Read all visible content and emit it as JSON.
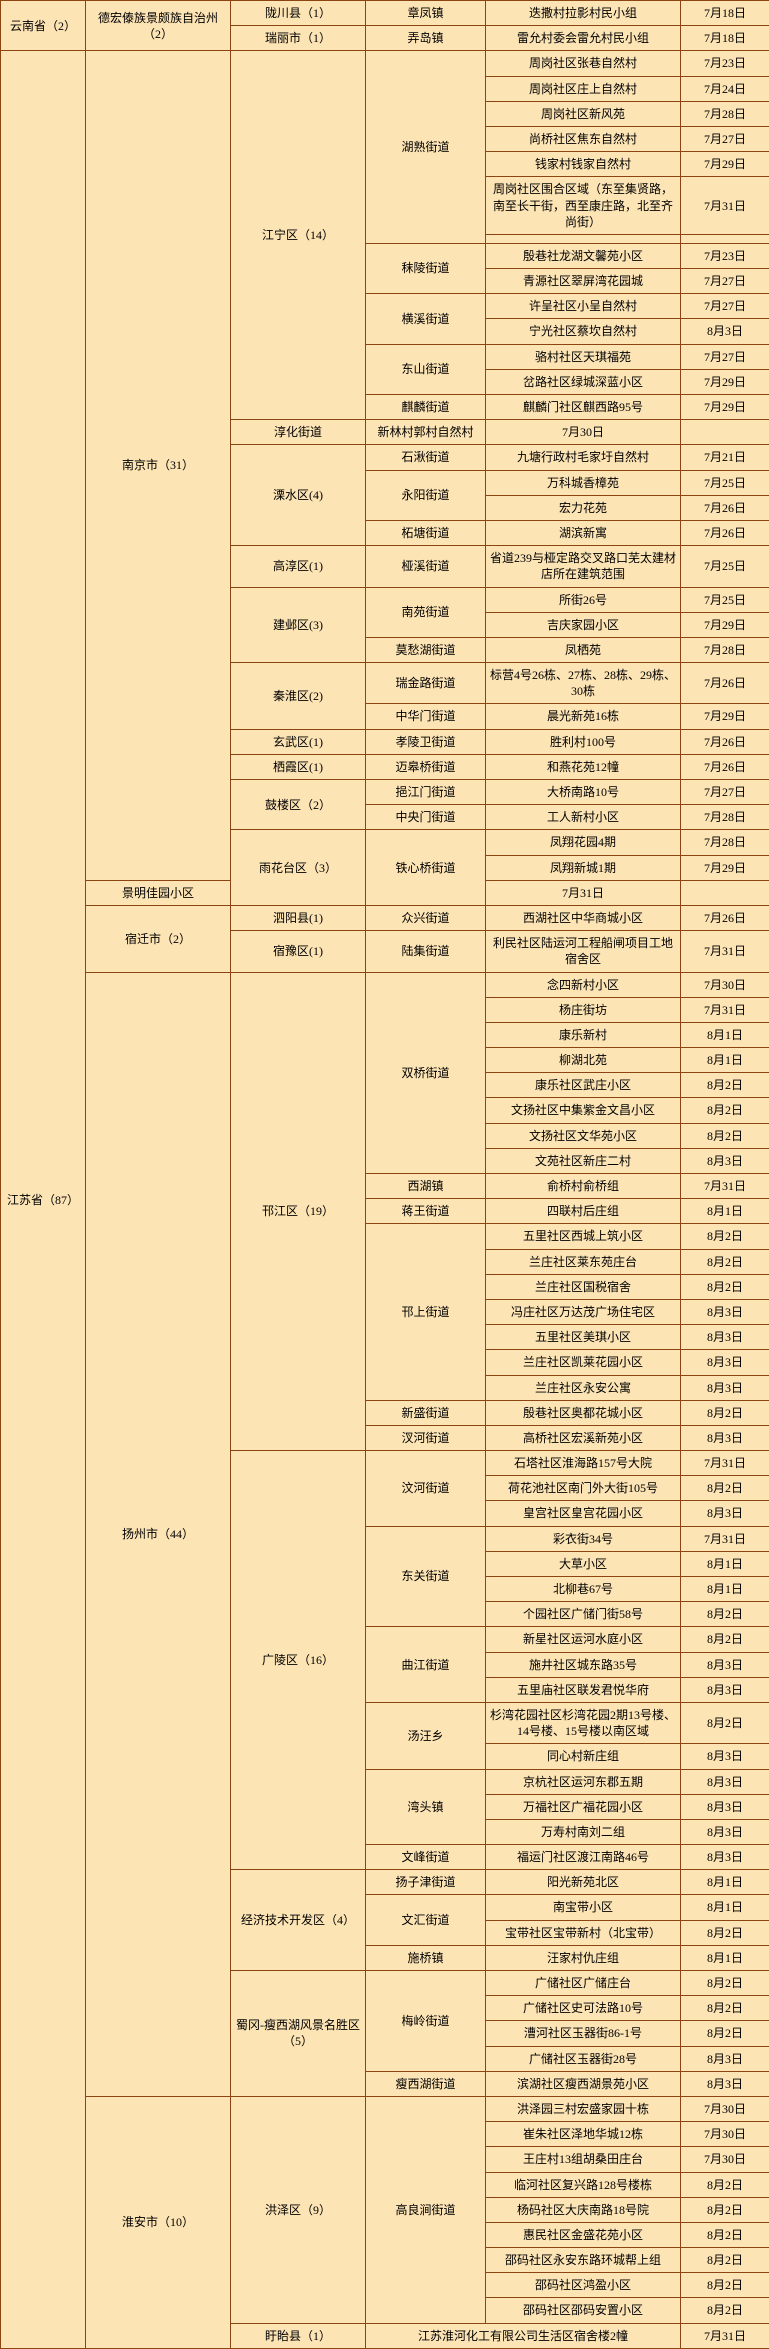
{
  "colwidths": [
    "85px",
    "145px",
    "135px",
    "120px",
    "195px",
    "89px"
  ],
  "rows": [
    [
      {
        "t": "云南省（2）",
        "rs": 2,
        "cls": "c0"
      },
      {
        "t": "德宏傣族景颇族自治州（2）",
        "rs": 2,
        "cls": "c1"
      },
      {
        "t": "陇川县（1）",
        "cls": "c2"
      },
      {
        "t": "章凤镇",
        "cls": "c3"
      },
      {
        "t": "迭撒村拉影村民小组",
        "cls": "c4"
      },
      {
        "t": "7月18日",
        "cls": "c5"
      }
    ],
    [
      {
        "t": "瑞丽市（1）",
        "cls": "c2"
      },
      {
        "t": "弄岛镇",
        "cls": "c3"
      },
      {
        "t": "雷允村委会雷允村民小组",
        "cls": "c4"
      },
      {
        "t": "7月18日",
        "cls": "c5"
      }
    ],
    [
      {
        "t": "江苏省（87）",
        "rs": 92,
        "cls": "c0"
      },
      {
        "t": "南京市（31）",
        "rs": 31,
        "cls": "c1"
      },
      {
        "t": "江宁区（14）",
        "rs": 14,
        "cls": "c2"
      },
      {
        "t": "湖熟街道",
        "rs": 7,
        "cls": "c3"
      },
      {
        "t": "周岗社区张巷自然村",
        "cls": "c4"
      },
      {
        "t": "7月23日",
        "cls": "c5"
      }
    ],
    [
      {
        "t": "周岗社区庄上自然村",
        "cls": "c4"
      },
      {
        "t": "7月24日",
        "cls": "c5"
      }
    ],
    [
      {
        "t": "周岗社区新风苑",
        "cls": "c4"
      },
      {
        "t": "7月28日",
        "cls": "c5"
      }
    ],
    [
      {
        "t": "尚桥社区焦东自然村",
        "cls": "c4"
      },
      {
        "t": "7月27日",
        "cls": "c5"
      }
    ],
    [
      {
        "t": "钱家村钱家自然村",
        "cls": "c4"
      },
      {
        "t": "7月29日",
        "cls": "c5"
      }
    ],
    [
      {
        "t": "周岗社区围合区域（东至集贤路，南至长干街，西至康庄路，北至齐尚街）",
        "cls": "c4"
      },
      {
        "t": "7月31日",
        "cls": "c5"
      }
    ],
    [
      {
        "t": "",
        "cls": "c4"
      },
      {
        "t": "",
        "cls": "c5"
      }
    ],
    [
      {
        "t": "秣陵街道",
        "rs": 2,
        "cls": "c3"
      },
      {
        "t": "殷巷社龙湖文馨苑小区",
        "cls": "c4"
      },
      {
        "t": "7月23日",
        "cls": "c5"
      }
    ],
    [
      {
        "t": "青源社区翠屏湾花园城",
        "cls": "c4"
      },
      {
        "t": "7月27日",
        "cls": "c5"
      }
    ],
    [
      {
        "t": "横溪街道",
        "rs": 2,
        "cls": "c3"
      },
      {
        "t": "许呈社区小呈自然村",
        "cls": "c4"
      },
      {
        "t": "7月27日",
        "cls": "c5"
      }
    ],
    [
      {
        "t": "宁光社区蔡坎自然村",
        "cls": "c4"
      },
      {
        "t": "8月3日",
        "cls": "c5"
      }
    ],
    [
      {
        "t": "东山街道",
        "rs": 2,
        "cls": "c3"
      },
      {
        "t": "骆村社区天琪福苑",
        "cls": "c4"
      },
      {
        "t": "7月27日",
        "cls": "c5"
      }
    ],
    [
      {
        "t": "岔路社区绿城深蓝小区",
        "cls": "c4"
      },
      {
        "t": "7月29日",
        "cls": "c5"
      }
    ],
    [
      {
        "t": "麒麟街道",
        "cls": "c3"
      },
      {
        "t": "麒麟门社区麒西路95号",
        "cls": "c4"
      },
      {
        "t": "7月29日",
        "cls": "c5"
      }
    ],
    [
      {
        "t": "淳化街道",
        "cls": "c3"
      },
      {
        "t": "新林村郭村自然村",
        "cls": "c4"
      },
      {
        "t": "7月30日",
        "cls": "c5"
      }
    ],
    [
      {
        "t": "溧水区(4)",
        "rs": 4,
        "cls": "c2"
      },
      {
        "t": "石湫街道",
        "cls": "c3"
      },
      {
        "t": "九塘行政村毛家圩自然村",
        "cls": "c4"
      },
      {
        "t": "7月21日",
        "cls": "c5"
      }
    ],
    [
      {
        "t": "永阳街道",
        "rs": 2,
        "cls": "c3"
      },
      {
        "t": "万科城香樟苑",
        "cls": "c4"
      },
      {
        "t": "7月25日",
        "cls": "c5"
      }
    ],
    [
      {
        "t": "宏力花苑",
        "cls": "c4"
      },
      {
        "t": "7月26日",
        "cls": "c5"
      }
    ],
    [
      {
        "t": "柘塘街道",
        "cls": "c3"
      },
      {
        "t": "湖滨新寓",
        "cls": "c4"
      },
      {
        "t": "7月26日",
        "cls": "c5"
      }
    ],
    [
      {
        "t": "高淳区(1)",
        "cls": "c2"
      },
      {
        "t": "桠溪街道",
        "cls": "c3"
      },
      {
        "t": "省道239与桠定路交叉路口芜太建材店所在建筑范围",
        "cls": "c4"
      },
      {
        "t": "7月25日",
        "cls": "c5"
      }
    ],
    [
      {
        "t": "建邺区(3)",
        "rs": 3,
        "cls": "c2"
      },
      {
        "t": "南苑街道",
        "rs": 2,
        "cls": "c3"
      },
      {
        "t": "所街26号",
        "cls": "c4"
      },
      {
        "t": "7月25日",
        "cls": "c5"
      }
    ],
    [
      {
        "t": "吉庆家园小区",
        "cls": "c4"
      },
      {
        "t": "7月29日",
        "cls": "c5"
      }
    ],
    [
      {
        "t": "莫愁湖街道",
        "cls": "c3"
      },
      {
        "t": "凤栖苑",
        "cls": "c4"
      },
      {
        "t": "7月28日",
        "cls": "c5"
      }
    ],
    [
      {
        "t": "秦淮区(2)",
        "rs": 2,
        "cls": "c2"
      },
      {
        "t": "瑞金路街道",
        "cls": "c3"
      },
      {
        "t": "标营4号26栋、27栋、28栋、29栋、30栋",
        "cls": "c4"
      },
      {
        "t": "7月26日",
        "cls": "c5"
      }
    ],
    [
      {
        "t": "中华门街道",
        "cls": "c3"
      },
      {
        "t": "晨光新苑16栋",
        "cls": "c4"
      },
      {
        "t": "7月29日",
        "cls": "c5"
      }
    ],
    [
      {
        "t": "玄武区(1)",
        "cls": "c2"
      },
      {
        "t": "孝陵卫街道",
        "cls": "c3"
      },
      {
        "t": "胜利村100号",
        "cls": "c4"
      },
      {
        "t": "7月26日",
        "cls": "c5"
      }
    ],
    [
      {
        "t": "栖霞区(1)",
        "cls": "c2"
      },
      {
        "t": "迈皋桥街道",
        "cls": "c3"
      },
      {
        "t": "和燕花苑12幢",
        "cls": "c4"
      },
      {
        "t": "7月26日",
        "cls": "c5"
      }
    ],
    [
      {
        "t": "鼓楼区（2）",
        "rs": 2,
        "cls": "c2"
      },
      {
        "t": "挹江门街道",
        "cls": "c3"
      },
      {
        "t": "大桥南路10号",
        "cls": "c4"
      },
      {
        "t": "7月27日",
        "cls": "c5"
      }
    ],
    [
      {
        "t": "中央门街道",
        "cls": "c3"
      },
      {
        "t": "工人新村小区",
        "cls": "c4"
      },
      {
        "t": "7月28日",
        "cls": "c5"
      }
    ],
    [
      {
        "t": "雨花台区（3）",
        "rs": 3,
        "cls": "c2"
      },
      {
        "t": "铁心桥街道",
        "rs": 3,
        "cls": "c3"
      },
      {
        "t": "凤翔花园4期",
        "cls": "c4"
      },
      {
        "t": "7月28日",
        "cls": "c5"
      }
    ],
    [
      {
        "t": "凤翔新城1期",
        "cls": "c4"
      },
      {
        "t": "7月29日",
        "cls": "c5"
      }
    ],
    [
      {
        "t": "景明佳园小区",
        "cls": "c4"
      },
      {
        "t": "7月31日",
        "cls": "c5"
      }
    ],
    [
      {
        "t": "宿迁市（2）",
        "rs": 2,
        "cls": "c1"
      },
      {
        "t": "泗阳县(1)",
        "cls": "c2"
      },
      {
        "t": "众兴街道",
        "cls": "c3"
      },
      {
        "t": "西湖社区中华商城小区",
        "cls": "c4"
      },
      {
        "t": "7月26日",
        "cls": "c5"
      }
    ],
    [
      {
        "t": "宿豫区(1)",
        "cls": "c2"
      },
      {
        "t": "陆集街道",
        "cls": "c3"
      },
      {
        "t": "利民社区陆运河工程船闸项目工地宿舍区",
        "cls": "c4"
      },
      {
        "t": "7月31日",
        "cls": "c5"
      }
    ],
    [
      {
        "t": "扬州市（44）",
        "rs": 44,
        "cls": "c1"
      },
      {
        "t": "邗江区（19）",
        "rs": 19,
        "cls": "c2"
      },
      {
        "t": "双桥街道",
        "rs": 8,
        "cls": "c3"
      },
      {
        "t": "念四新村小区",
        "cls": "c4"
      },
      {
        "t": "7月30日",
        "cls": "c5"
      }
    ],
    [
      {
        "t": "杨庄街坊",
        "cls": "c4"
      },
      {
        "t": "7月31日",
        "cls": "c5"
      }
    ],
    [
      {
        "t": "康乐新村",
        "cls": "c4"
      },
      {
        "t": "8月1日",
        "cls": "c5"
      }
    ],
    [
      {
        "t": "柳湖北苑",
        "cls": "c4"
      },
      {
        "t": "8月1日",
        "cls": "c5"
      }
    ],
    [
      {
        "t": "康乐社区武庄小区",
        "cls": "c4"
      },
      {
        "t": "8月2日",
        "cls": "c5"
      }
    ],
    [
      {
        "t": "文扬社区中集紫金文昌小区",
        "cls": "c4"
      },
      {
        "t": "8月2日",
        "cls": "c5"
      }
    ],
    [
      {
        "t": "文扬社区文华苑小区",
        "cls": "c4"
      },
      {
        "t": "8月2日",
        "cls": "c5"
      }
    ],
    [
      {
        "t": "文苑社区新庄二村",
        "cls": "c4"
      },
      {
        "t": "8月3日",
        "cls": "c5"
      }
    ],
    [
      {
        "t": "西湖镇",
        "cls": "c3"
      },
      {
        "t": "俞桥村俞桥组",
        "cls": "c4"
      },
      {
        "t": "7月31日",
        "cls": "c5"
      }
    ],
    [
      {
        "t": "蒋王街道",
        "cls": "c3"
      },
      {
        "t": "四联村后庄组",
        "cls": "c4"
      },
      {
        "t": "8月1日",
        "cls": "c5"
      }
    ],
    [
      {
        "t": "邗上街道",
        "rs": 7,
        "cls": "c3"
      },
      {
        "t": "五里社区西城上筑小区",
        "cls": "c4"
      },
      {
        "t": "8月2日",
        "cls": "c5"
      }
    ],
    [
      {
        "t": "兰庄社区莱东苑庄台",
        "cls": "c4"
      },
      {
        "t": "8月2日",
        "cls": "c5"
      }
    ],
    [
      {
        "t": "兰庄社区国税宿舍",
        "cls": "c4"
      },
      {
        "t": "8月2日",
        "cls": "c5"
      }
    ],
    [
      {
        "t": "冯庄社区万达茂广场住宅区",
        "cls": "c4"
      },
      {
        "t": "8月3日",
        "cls": "c5"
      }
    ],
    [
      {
        "t": "五里社区美琪小区",
        "cls": "c4"
      },
      {
        "t": "8月3日",
        "cls": "c5"
      }
    ],
    [
      {
        "t": "兰庄社区凯莱花园小区",
        "cls": "c4"
      },
      {
        "t": "8月3日",
        "cls": "c5"
      }
    ],
    [
      {
        "t": "兰庄社区永安公寓",
        "cls": "c4"
      },
      {
        "t": "8月3日",
        "cls": "c5"
      }
    ],
    [
      {
        "t": "新盛街道",
        "cls": "c3"
      },
      {
        "t": "殷巷社区奥都花城小区",
        "cls": "c4"
      },
      {
        "t": "8月2日",
        "cls": "c5"
      }
    ],
    [
      {
        "t": "汊河街道",
        "cls": "c3"
      },
      {
        "t": "高桥社区宏溪新苑小区",
        "cls": "c4"
      },
      {
        "t": "8月3日",
        "cls": "c5"
      }
    ],
    [
      {
        "t": "广陵区（16）",
        "rs": 16,
        "cls": "c2"
      },
      {
        "t": "汶河街道",
        "rs": 3,
        "cls": "c3"
      },
      {
        "t": "石塔社区淮海路157号大院",
        "cls": "c4"
      },
      {
        "t": "7月31日",
        "cls": "c5"
      }
    ],
    [
      {
        "t": "荷花池社区南门外大街105号",
        "cls": "c4"
      },
      {
        "t": "8月2日",
        "cls": "c5"
      }
    ],
    [
      {
        "t": "皇宫社区皇宫花园小区",
        "cls": "c4"
      },
      {
        "t": "8月3日",
        "cls": "c5"
      }
    ],
    [
      {
        "t": "东关街道",
        "rs": 4,
        "cls": "c3"
      },
      {
        "t": "彩衣街34号",
        "cls": "c4"
      },
      {
        "t": "7月31日",
        "cls": "c5"
      }
    ],
    [
      {
        "t": "大草小区",
        "cls": "c4"
      },
      {
        "t": "8月1日",
        "cls": "c5"
      }
    ],
    [
      {
        "t": "北柳巷67号",
        "cls": "c4"
      },
      {
        "t": "8月1日",
        "cls": "c5"
      }
    ],
    [
      {
        "t": "个园社区广储门街58号",
        "cls": "c4"
      },
      {
        "t": "8月2日",
        "cls": "c5"
      }
    ],
    [
      {
        "t": "曲江街道",
        "rs": 3,
        "cls": "c3"
      },
      {
        "t": "新星社区运河水庭小区",
        "cls": "c4"
      },
      {
        "t": "8月2日",
        "cls": "c5"
      }
    ],
    [
      {
        "t": "施井社区城东路35号",
        "cls": "c4"
      },
      {
        "t": "8月3日",
        "cls": "c5"
      }
    ],
    [
      {
        "t": "五里庙社区联发君悦华府",
        "cls": "c4"
      },
      {
        "t": "8月3日",
        "cls": "c5"
      }
    ],
    [
      {
        "t": "汤汪乡",
        "rs": 2,
        "cls": "c3"
      },
      {
        "t": "杉湾花园社区杉湾花园2期13号楼、14号楼、15号楼以南区域",
        "cls": "c4"
      },
      {
        "t": "8月2日",
        "cls": "c5"
      }
    ],
    [
      {
        "t": "同心村新庄组",
        "cls": "c4"
      },
      {
        "t": "8月3日",
        "cls": "c5"
      }
    ],
    [
      {
        "t": "湾头镇",
        "rs": 3,
        "cls": "c3"
      },
      {
        "t": "京杭社区运河东郡五期",
        "cls": "c4"
      },
      {
        "t": "8月3日",
        "cls": "c5"
      }
    ],
    [
      {
        "t": "万福社区广福花园小区",
        "cls": "c4"
      },
      {
        "t": "8月3日",
        "cls": "c5"
      }
    ],
    [
      {
        "t": "万寿村南刘二组",
        "cls": "c4"
      },
      {
        "t": "8月3日",
        "cls": "c5"
      }
    ],
    [
      {
        "t": "文峰街道",
        "cls": "c3"
      },
      {
        "t": "福运门社区渡江南路46号",
        "cls": "c4"
      },
      {
        "t": "8月3日",
        "cls": "c5"
      }
    ],
    [
      {
        "t": "经济技术开发区（4）",
        "rs": 4,
        "cls": "c2"
      },
      {
        "t": "扬子津街道",
        "cls": "c3"
      },
      {
        "t": "阳光新苑北区",
        "cls": "c4"
      },
      {
        "t": "8月1日",
        "cls": "c5"
      }
    ],
    [
      {
        "t": "文汇街道",
        "rs": 2,
        "cls": "c3"
      },
      {
        "t": "南宝带小区",
        "cls": "c4"
      },
      {
        "t": "8月1日",
        "cls": "c5"
      }
    ],
    [
      {
        "t": "宝带社区宝带新村（北宝带）",
        "cls": "c4"
      },
      {
        "t": "8月2日",
        "cls": "c5"
      }
    ],
    [
      {
        "t": "施桥镇",
        "cls": "c3"
      },
      {
        "t": "汪家村仇庄组",
        "cls": "c4"
      },
      {
        "t": "8月1日",
        "cls": "c5"
      }
    ],
    [
      {
        "t": "蜀冈-瘦西湖风景名胜区（5）",
        "rs": 5,
        "cls": "c2"
      },
      {
        "t": "梅岭街道",
        "rs": 4,
        "cls": "c3"
      },
      {
        "t": "广储社区广储庄台",
        "cls": "c4"
      },
      {
        "t": "8月2日",
        "cls": "c5"
      }
    ],
    [
      {
        "t": "广储社区史可法路10号",
        "cls": "c4"
      },
      {
        "t": "8月2日",
        "cls": "c5"
      }
    ],
    [
      {
        "t": "漕河社区玉器街86-1号",
        "cls": "c4"
      },
      {
        "t": "8月2日",
        "cls": "c5"
      }
    ],
    [
      {
        "t": "广储社区玉器街28号",
        "cls": "c4"
      },
      {
        "t": "8月3日",
        "cls": "c5"
      }
    ],
    [
      {
        "t": "瘦西湖街道",
        "cls": "c3"
      },
      {
        "t": "滨湖社区瘦西湖景苑小区",
        "cls": "c4"
      },
      {
        "t": "8月3日",
        "cls": "c5"
      }
    ],
    [
      {
        "t": "淮安市（10）",
        "rs": 10,
        "cls": "c1"
      },
      {
        "t": "洪泽区（9）",
        "rs": 9,
        "cls": "c2"
      },
      {
        "t": "高良涧街道",
        "rs": 9,
        "cls": "c3"
      },
      {
        "t": "洪泽园三村宏盛家园十栋",
        "cls": "c4"
      },
      {
        "t": "7月30日",
        "cls": "c5"
      }
    ],
    [
      {
        "t": "崔朱社区泽地华城12栋",
        "cls": "c4"
      },
      {
        "t": "7月30日",
        "cls": "c5"
      }
    ],
    [
      {
        "t": "王庄村13组胡桑田庄台",
        "cls": "c4"
      },
      {
        "t": "7月30日",
        "cls": "c5"
      }
    ],
    [
      {
        "t": "临河社区复兴路128号楼栋",
        "cls": "c4"
      },
      {
        "t": "8月2日",
        "cls": "c5"
      }
    ],
    [
      {
        "t": "杨码社区大庆南路18号院",
        "cls": "c4"
      },
      {
        "t": "8月2日",
        "cls": "c5"
      }
    ],
    [
      {
        "t": "惠民社区金盛花苑小区",
        "cls": "c4"
      },
      {
        "t": "8月2日",
        "cls": "c5"
      }
    ],
    [
      {
        "t": "邵码社区永安东路环城帮上组",
        "cls": "c4"
      },
      {
        "t": "8月2日",
        "cls": "c5"
      }
    ],
    [
      {
        "t": "邵码社区鸿盈小区",
        "cls": "c4"
      },
      {
        "t": "8月2日",
        "cls": "c5"
      }
    ],
    [
      {
        "t": "邵码社区邵码安置小区",
        "cls": "c4"
      },
      {
        "t": "8月2日",
        "cls": "c5"
      }
    ],
    [
      {
        "t": "盱眙县（1）",
        "cls": "c2"
      },
      {
        "t": "江苏淮河化工有限公司生活区宿舍楼2幢",
        "cls": "c4",
        "cs": 2
      },
      {
        "t": "7月31日",
        "cls": "c5"
      }
    ]
  ]
}
